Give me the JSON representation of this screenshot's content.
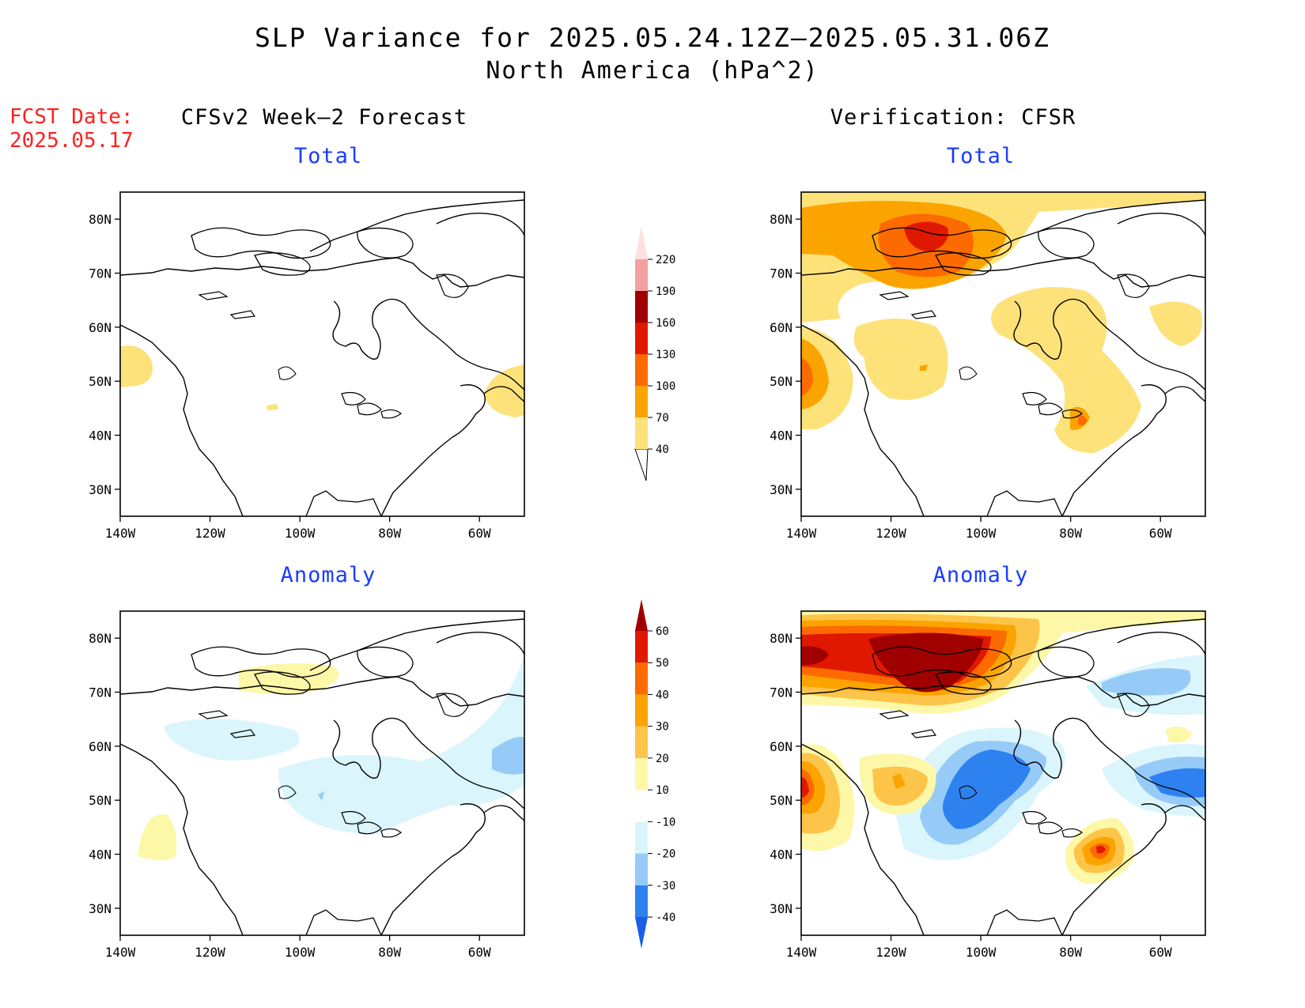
{
  "header": {
    "title": "SLP Variance for 2025.05.24.12Z–2025.05.31.06Z",
    "subtitle": "North America (hPa^2)"
  },
  "fcst": {
    "label": "FCST Date:",
    "date": "2025.05.17"
  },
  "columns": {
    "left": "CFSv2 Week–2 Forecast",
    "right": "Verification: CFSR"
  },
  "panels": {
    "forecast_total": "Total",
    "verif_total": "Total",
    "forecast_anomaly": "Anomaly",
    "verif_anomaly": "Anomaly"
  },
  "axes": {
    "lat_ticks": [
      "80N",
      "70N",
      "60N",
      "50N",
      "40N",
      "30N"
    ],
    "lon_ticks": [
      "140W",
      "120W",
      "100W",
      "80W",
      "60W"
    ],
    "lat_range": [
      25,
      85
    ],
    "lon_range": [
      -140,
      -50
    ]
  },
  "total_colorbar": {
    "levels": [
      "40",
      "70",
      "100",
      "130",
      "160",
      "190",
      "220"
    ],
    "colors": [
      "#fde27a",
      "#fba400",
      "#fd6a00",
      "#e11800",
      "#a00000",
      "#f4a0a0",
      "#fde0e0"
    ]
  },
  "anomaly_colorbar": {
    "levels": [
      "-40",
      "-30",
      "-20",
      "-10",
      "10",
      "20",
      "30",
      "40",
      "50",
      "60"
    ],
    "colors": [
      "#1a5fe6",
      "#2d82f0",
      "#97cbf7",
      "#daf5fc",
      "#ffffff",
      "#fdf7a8",
      "#fdc44a",
      "#fba400",
      "#fd6a00",
      "#e11800",
      "#a00000"
    ]
  }
}
